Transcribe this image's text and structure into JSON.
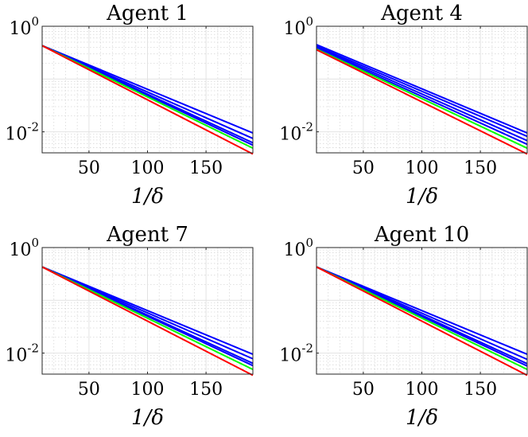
{
  "chart_data": [
    {
      "type": "line",
      "title": "Agent 1",
      "xlabel": "1/δ",
      "ylabel": "",
      "xlim": [
        10,
        190
      ],
      "ylim": [
        0.004,
        1
      ],
      "yscale": "log",
      "xticks": [
        50,
        100,
        150
      ],
      "yticks": [
        {
          "base": "10",
          "exp": "0",
          "value": 1
        },
        {
          "base": "10",
          "exp": "-2",
          "value": 0.01
        }
      ],
      "grid": true,
      "series": [
        {
          "name": "blue-1",
          "color": "#0000ff",
          "x": [
            10,
            190
          ],
          "y": [
            0.43,
            0.0095
          ]
        },
        {
          "name": "blue-2",
          "color": "#0000ff",
          "x": [
            10,
            190
          ],
          "y": [
            0.43,
            0.0075
          ]
        },
        {
          "name": "blue-3",
          "color": "#0000ff",
          "x": [
            10,
            190
          ],
          "y": [
            0.43,
            0.0062
          ]
        },
        {
          "name": "blue-4",
          "color": "#0000ff",
          "x": [
            10,
            190
          ],
          "y": [
            0.43,
            0.0056
          ]
        },
        {
          "name": "green",
          "color": "#00ff00",
          "x": [
            10,
            190
          ],
          "y": [
            0.43,
            0.0049
          ]
        },
        {
          "name": "red",
          "color": "#ff0000",
          "x": [
            10,
            190
          ],
          "y": [
            0.43,
            0.0038
          ]
        }
      ]
    },
    {
      "type": "line",
      "title": "Agent 4",
      "xlabel": "1/δ",
      "ylabel": "",
      "xlim": [
        10,
        190
      ],
      "ylim": [
        0.004,
        1
      ],
      "yscale": "log",
      "xticks": [
        50,
        100,
        150
      ],
      "yticks": [
        {
          "base": "10",
          "exp": "0",
          "value": 1
        },
        {
          "base": "10",
          "exp": "-2",
          "value": 0.01
        }
      ],
      "grid": true,
      "series": [
        {
          "name": "blue-1",
          "color": "#0000ff",
          "x": [
            10,
            190
          ],
          "y": [
            0.45,
            0.0095
          ]
        },
        {
          "name": "blue-2",
          "color": "#0000ff",
          "x": [
            10,
            190
          ],
          "y": [
            0.42,
            0.0082
          ]
        },
        {
          "name": "blue-3",
          "color": "#0000ff",
          "x": [
            10,
            190
          ],
          "y": [
            0.4,
            0.0068
          ]
        },
        {
          "name": "blue-4",
          "color": "#0000ff",
          "x": [
            10,
            190
          ],
          "y": [
            0.38,
            0.0058
          ]
        },
        {
          "name": "green",
          "color": "#00ff00",
          "x": [
            10,
            190
          ],
          "y": [
            0.37,
            0.0049
          ]
        },
        {
          "name": "red",
          "color": "#ff0000",
          "x": [
            10,
            190
          ],
          "y": [
            0.36,
            0.0038
          ]
        }
      ]
    },
    {
      "type": "line",
      "title": "Agent 7",
      "xlabel": "1/δ",
      "ylabel": "",
      "xlim": [
        10,
        190
      ],
      "ylim": [
        0.004,
        1
      ],
      "yscale": "log",
      "xticks": [
        50,
        100,
        150
      ],
      "yticks": [
        {
          "base": "10",
          "exp": "0",
          "value": 1
        },
        {
          "base": "10",
          "exp": "-2",
          "value": 0.01
        }
      ],
      "grid": true,
      "series": [
        {
          "name": "blue-1",
          "color": "#0000ff",
          "x": [
            10,
            190
          ],
          "y": [
            0.43,
            0.0095
          ]
        },
        {
          "name": "blue-2",
          "color": "#0000ff",
          "x": [
            10,
            190
          ],
          "y": [
            0.43,
            0.0078
          ]
        },
        {
          "name": "blue-3",
          "color": "#0000ff",
          "x": [
            10,
            190
          ],
          "y": [
            0.43,
            0.0064
          ]
        },
        {
          "name": "blue-4",
          "color": "#0000ff",
          "x": [
            10,
            190
          ],
          "y": [
            0.43,
            0.0058
          ]
        },
        {
          "name": "green",
          "color": "#00ff00",
          "x": [
            10,
            190
          ],
          "y": [
            0.43,
            0.0049
          ]
        },
        {
          "name": "red",
          "color": "#ff0000",
          "x": [
            10,
            190
          ],
          "y": [
            0.43,
            0.0038
          ]
        }
      ]
    },
    {
      "type": "line",
      "title": "Agent 10",
      "xlabel": "1/δ",
      "ylabel": "",
      "xlim": [
        10,
        190
      ],
      "ylim": [
        0.004,
        1
      ],
      "yscale": "log",
      "xticks": [
        50,
        100,
        150
      ],
      "yticks": [
        {
          "base": "10",
          "exp": "0",
          "value": 1
        },
        {
          "base": "10",
          "exp": "-2",
          "value": 0.01
        }
      ],
      "grid": true,
      "series": [
        {
          "name": "blue-1",
          "color": "#0000ff",
          "x": [
            10,
            190
          ],
          "y": [
            0.43,
            0.0095
          ]
        },
        {
          "name": "blue-2",
          "color": "#0000ff",
          "x": [
            10,
            190
          ],
          "y": [
            0.43,
            0.0076
          ]
        },
        {
          "name": "blue-3",
          "color": "#0000ff",
          "x": [
            10,
            190
          ],
          "y": [
            0.43,
            0.0063
          ]
        },
        {
          "name": "blue-4",
          "color": "#0000ff",
          "x": [
            10,
            190
          ],
          "y": [
            0.43,
            0.0057
          ]
        },
        {
          "name": "green",
          "color": "#00ff00",
          "x": [
            10,
            190
          ],
          "y": [
            0.43,
            0.0049
          ]
        },
        {
          "name": "red",
          "color": "#ff0000",
          "x": [
            10,
            190
          ],
          "y": [
            0.43,
            0.0038
          ]
        }
      ]
    }
  ]
}
